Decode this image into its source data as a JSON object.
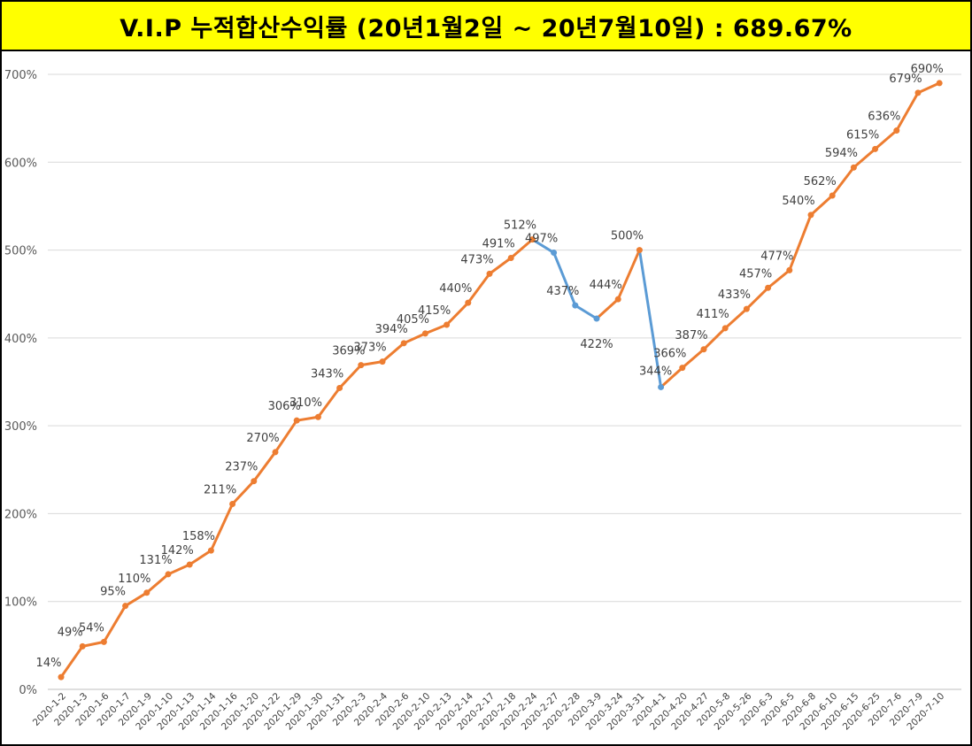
{
  "title": "V.I.P 누적합산수익률 (20년1월2일 ~ 20년7월10일) : 689.67%",
  "colors": {
    "up": "#ed7d31",
    "down": "#5b9bd5",
    "grid": "#d9d9d9",
    "label": "#404040",
    "title_bg": "#ffff00"
  },
  "chart_data": {
    "type": "line",
    "title": "V.I.P 누적합산수익률 (20년1월2일 ~ 20년7월10일) : 689.67%",
    "xlabel": "",
    "ylabel": "",
    "ylim": [
      0,
      700
    ],
    "ytick_step": 100,
    "yticks": [
      "0%",
      "100%",
      "200%",
      "300%",
      "400%",
      "500%",
      "600%",
      "700%"
    ],
    "grid": true,
    "legend": "none",
    "categories": [
      "2020-1-2",
      "2020-1-3",
      "2020-1-6",
      "2020-1-7",
      "2020-1-9",
      "2020-1-10",
      "2020-1-13",
      "2020-1-14",
      "2020-1-16",
      "2020-1-20",
      "2020-1-22",
      "2020-1-29",
      "2020-1-30",
      "2020-1-31",
      "2020-2-3",
      "2020-2-4",
      "2020-2-6",
      "2020-2-10",
      "2020-2-13",
      "2020-2-14",
      "2020-2-17",
      "2020-2-18",
      "2020-2-24",
      "2020-2-27",
      "2020-2-28",
      "2020-3-9",
      "2020-3-24",
      "2020-3-31",
      "2020-4-1",
      "2020-4-20",
      "2020-4-27",
      "2020-5-8",
      "2020-5-26",
      "2020-6-3",
      "2020-6-5",
      "2020-6-8",
      "2020-6-10",
      "2020-6-15",
      "2020-6-25",
      "2020-7-6",
      "2020-7-9",
      "2020-7-10"
    ],
    "values": [
      14,
      49,
      54,
      95,
      110,
      131,
      142,
      158,
      211,
      237,
      270,
      306,
      310,
      343,
      369,
      373,
      394,
      405,
      415,
      440,
      473,
      491,
      512,
      497,
      437,
      422,
      444,
      500,
      344,
      366,
      387,
      411,
      433,
      457,
      477,
      540,
      562,
      594,
      615,
      636,
      679,
      690
    ],
    "data_labels": [
      "14%",
      "49%",
      "54%",
      "95%",
      "110%",
      "131%",
      "142%",
      "158%",
      "211%",
      "237%",
      "270%",
      "306%",
      "310%",
      "343%",
      "369%",
      "373%",
      "394%",
      "405%",
      "415%",
      "440%",
      "473%",
      "491%",
      "512%",
      "497%",
      "437%",
      "422%",
      "444%",
      "500%",
      "344%",
      "366%",
      "387%",
      "411%",
      "433%",
      "457%",
      "477%",
      "540%",
      "562%",
      "594%",
      "615%",
      "636%",
      "679%",
      "690%"
    ]
  }
}
